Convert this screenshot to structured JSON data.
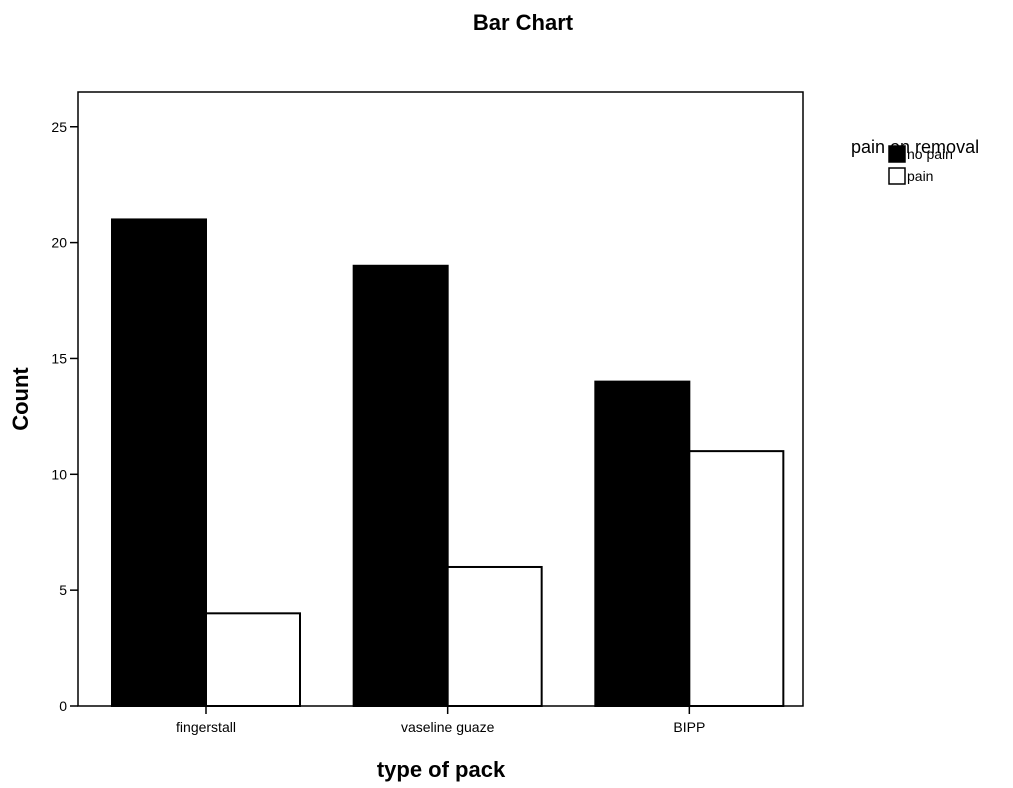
{
  "chart_data": {
    "type": "bar",
    "title": "Bar Chart",
    "xlabel": "type of pack",
    "ylabel": "Count",
    "categories": [
      "fingerstall",
      "vaseline guaze",
      "BIPP"
    ],
    "series": [
      {
        "name": "no pain",
        "values": [
          21,
          19,
          14
        ],
        "color": "#000000"
      },
      {
        "name": "pain",
        "values": [
          4,
          6,
          11
        ],
        "color": "#ffffff"
      }
    ],
    "ylim": [
      0,
      26.5
    ],
    "yticks": [
      0,
      5,
      10,
      15,
      20,
      25
    ],
    "legend": {
      "title": "pain on removal",
      "position": "top-right"
    },
    "grid": false
  }
}
